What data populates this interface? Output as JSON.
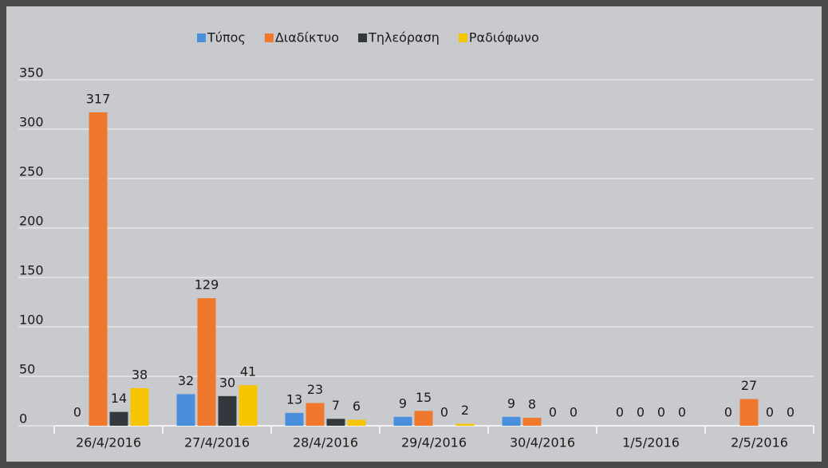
{
  "chart_data": {
    "type": "bar",
    "categories": [
      "26/4/2016",
      "27/4/2016",
      "28/4/2016",
      "29/4/2016",
      "30/4/2016",
      "1/5/2016",
      "2/5/2016"
    ],
    "series": [
      {
        "name": "Τύπος",
        "color": "#4a8fdc",
        "values": [
          0,
          32,
          13,
          9,
          9,
          0,
          0
        ]
      },
      {
        "name": "Διαδίκτυο",
        "color": "#f0782c",
        "values": [
          317,
          129,
          23,
          15,
          8,
          0,
          27
        ]
      },
      {
        "name": "Τηλεόραση",
        "color": "#32383e",
        "values": [
          14,
          30,
          7,
          0,
          0,
          0,
          0
        ]
      },
      {
        "name": "Ραδιόφωνο",
        "color": "#f6c500",
        "values": [
          38,
          41,
          6,
          2,
          0,
          0,
          0
        ]
      }
    ],
    "ylim": [
      0,
      350
    ],
    "yticks": [
      0,
      50,
      100,
      150,
      200,
      250,
      300,
      350
    ],
    "grid": true,
    "legend": "top"
  }
}
